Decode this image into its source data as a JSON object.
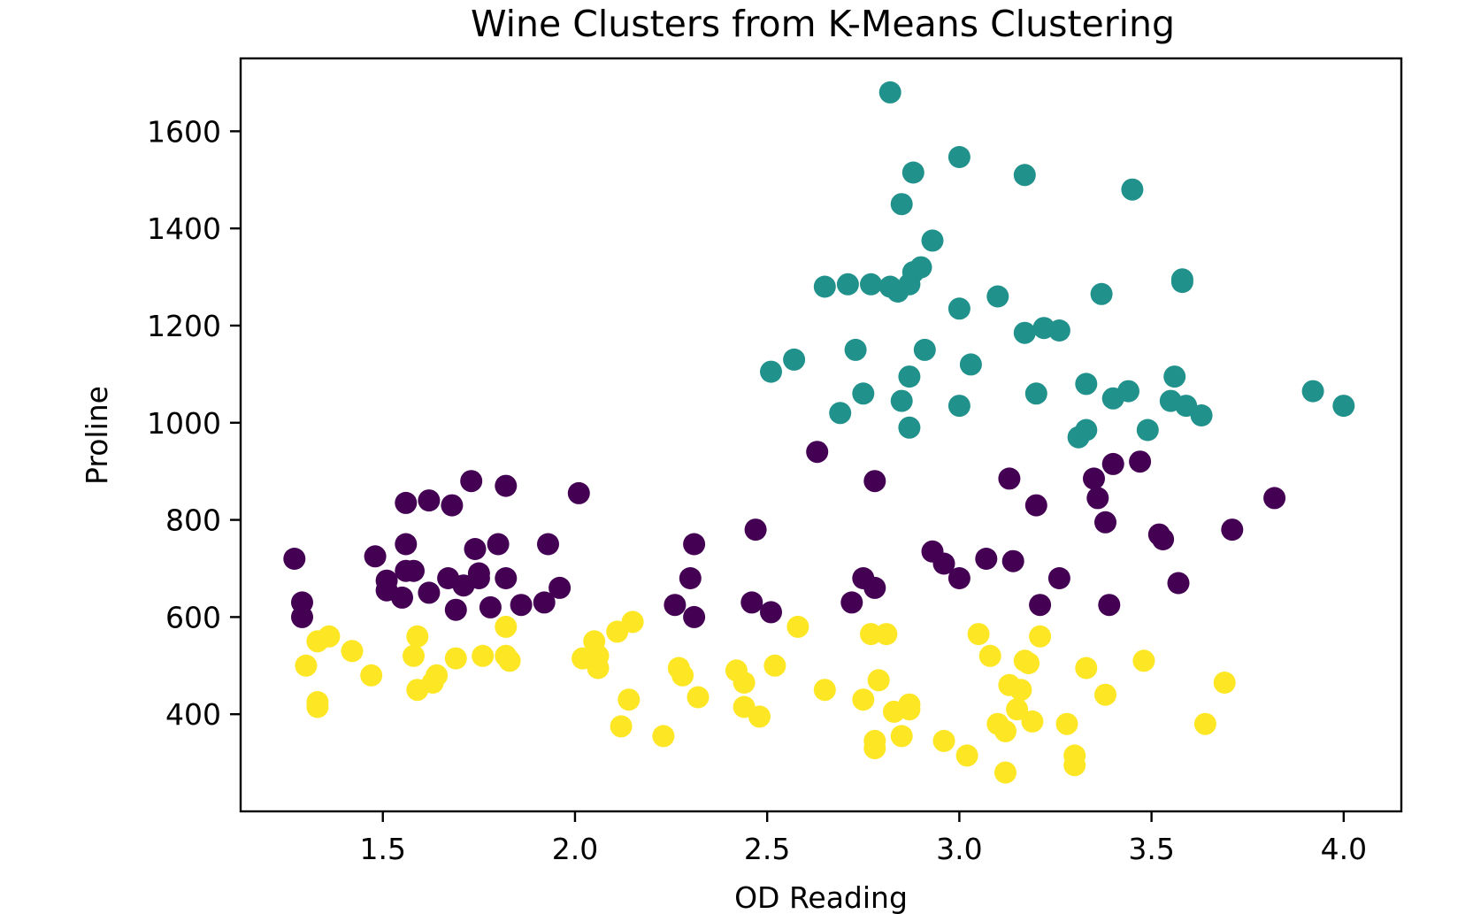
{
  "chart_data": {
    "type": "scatter",
    "title": "Wine Clusters from K-Means Clustering",
    "xlabel": "OD Reading",
    "ylabel": "Proline",
    "xlim": [
      1.13,
      4.15
    ],
    "ylim": [
      200,
      1750
    ],
    "xticks": [
      1.5,
      2.0,
      2.5,
      3.0,
      3.5,
      4.0
    ],
    "xtick_labels": [
      "1.5",
      "2.0",
      "2.5",
      "3.0",
      "3.5",
      "4.0"
    ],
    "yticks": [
      400,
      600,
      800,
      1000,
      1200,
      1400,
      1600
    ],
    "ytick_labels": [
      "400",
      "600",
      "800",
      "1000",
      "1200",
      "1400",
      "1600"
    ],
    "grid": false,
    "series": [
      {
        "color": "#440154",
        "points": [
          [
            1.27,
            720
          ],
          [
            1.29,
            630
          ],
          [
            1.29,
            600
          ],
          [
            1.48,
            725
          ],
          [
            1.51,
            675
          ],
          [
            1.51,
            655
          ],
          [
            1.55,
            640
          ],
          [
            1.56,
            835
          ],
          [
            1.56,
            750
          ],
          [
            1.56,
            695
          ],
          [
            1.58,
            695
          ],
          [
            1.62,
            840
          ],
          [
            1.62,
            650
          ],
          [
            1.67,
            680
          ],
          [
            1.68,
            830
          ],
          [
            1.69,
            615
          ],
          [
            1.71,
            665
          ],
          [
            1.73,
            880
          ],
          [
            1.74,
            740
          ],
          [
            1.75,
            690
          ],
          [
            1.75,
            680
          ],
          [
            1.78,
            620
          ],
          [
            1.8,
            750
          ],
          [
            1.82,
            870
          ],
          [
            1.82,
            680
          ],
          [
            1.86,
            625
          ],
          [
            1.92,
            630
          ],
          [
            1.93,
            750
          ],
          [
            1.96,
            660
          ],
          [
            2.01,
            855
          ],
          [
            2.26,
            625
          ],
          [
            2.3,
            680
          ],
          [
            2.31,
            750
          ],
          [
            2.31,
            600
          ],
          [
            2.46,
            630
          ],
          [
            2.47,
            780
          ],
          [
            2.51,
            610
          ],
          [
            2.63,
            940
          ],
          [
            2.72,
            630
          ],
          [
            2.75,
            680
          ],
          [
            2.78,
            880
          ],
          [
            2.78,
            660
          ],
          [
            2.93,
            735
          ],
          [
            2.96,
            710
          ],
          [
            3.0,
            680
          ],
          [
            3.07,
            720
          ],
          [
            3.13,
            885
          ],
          [
            3.14,
            715
          ],
          [
            3.2,
            830
          ],
          [
            3.21,
            625
          ],
          [
            3.26,
            680
          ],
          [
            3.35,
            885
          ],
          [
            3.36,
            845
          ],
          [
            3.38,
            795
          ],
          [
            3.39,
            625
          ],
          [
            3.4,
            915
          ],
          [
            3.47,
            920
          ],
          [
            3.52,
            770
          ],
          [
            3.53,
            760
          ],
          [
            3.57,
            670
          ],
          [
            3.71,
            780
          ],
          [
            3.82,
            845
          ]
        ]
      },
      {
        "color": "#21918c",
        "points": [
          [
            2.51,
            1105
          ],
          [
            2.57,
            1130
          ],
          [
            2.65,
            1280
          ],
          [
            2.69,
            1020
          ],
          [
            2.71,
            1285
          ],
          [
            2.73,
            1150
          ],
          [
            2.75,
            1060
          ],
          [
            2.77,
            1285
          ],
          [
            2.82,
            1680
          ],
          [
            2.82,
            1280
          ],
          [
            2.84,
            1270
          ],
          [
            2.85,
            1450
          ],
          [
            2.85,
            1045
          ],
          [
            2.87,
            1095
          ],
          [
            2.87,
            990
          ],
          [
            2.87,
            1285
          ],
          [
            2.88,
            1310
          ],
          [
            2.88,
            1515
          ],
          [
            2.9,
            1320
          ],
          [
            2.91,
            1150
          ],
          [
            2.93,
            1375
          ],
          [
            3.0,
            1547
          ],
          [
            3.0,
            1235
          ],
          [
            3.0,
            1035
          ],
          [
            3.03,
            1120
          ],
          [
            3.1,
            1260
          ],
          [
            3.17,
            1510
          ],
          [
            3.17,
            1185
          ],
          [
            3.2,
            1060
          ],
          [
            3.22,
            1195
          ],
          [
            3.26,
            1190
          ],
          [
            3.31,
            970
          ],
          [
            3.33,
            985
          ],
          [
            3.33,
            1080
          ],
          [
            3.37,
            1265
          ],
          [
            3.4,
            1050
          ],
          [
            3.44,
            1065
          ],
          [
            3.45,
            1480
          ],
          [
            3.49,
            985
          ],
          [
            3.55,
            1045
          ],
          [
            3.56,
            1095
          ],
          [
            3.58,
            1290
          ],
          [
            3.58,
            1295
          ],
          [
            3.59,
            1035
          ],
          [
            3.63,
            1015
          ],
          [
            3.92,
            1065
          ],
          [
            4.0,
            1035
          ]
        ]
      },
      {
        "color": "#fde725",
        "points": [
          [
            1.3,
            500
          ],
          [
            1.33,
            550
          ],
          [
            1.33,
            425
          ],
          [
            1.33,
            415
          ],
          [
            1.36,
            560
          ],
          [
            1.42,
            530
          ],
          [
            1.47,
            480
          ],
          [
            1.58,
            520
          ],
          [
            1.59,
            560
          ],
          [
            1.59,
            450
          ],
          [
            1.63,
            465
          ],
          [
            1.64,
            480
          ],
          [
            1.69,
            515
          ],
          [
            1.76,
            520
          ],
          [
            1.82,
            580
          ],
          [
            1.82,
            520
          ],
          [
            1.83,
            510
          ],
          [
            2.02,
            515
          ],
          [
            2.05,
            550
          ],
          [
            2.05,
            515
          ],
          [
            2.06,
            495
          ],
          [
            2.06,
            520
          ],
          [
            2.11,
            570
          ],
          [
            2.12,
            375
          ],
          [
            2.14,
            430
          ],
          [
            2.15,
            590
          ],
          [
            2.23,
            355
          ],
          [
            2.27,
            495
          ],
          [
            2.28,
            480
          ],
          [
            2.32,
            435
          ],
          [
            2.42,
            490
          ],
          [
            2.44,
            465
          ],
          [
            2.44,
            415
          ],
          [
            2.48,
            395
          ],
          [
            2.52,
            500
          ],
          [
            2.58,
            580
          ],
          [
            2.65,
            450
          ],
          [
            2.75,
            430
          ],
          [
            2.77,
            565
          ],
          [
            2.78,
            345
          ],
          [
            2.78,
            330
          ],
          [
            2.79,
            470
          ],
          [
            2.81,
            565
          ],
          [
            2.83,
            405
          ],
          [
            2.85,
            355
          ],
          [
            2.87,
            420
          ],
          [
            2.87,
            410
          ],
          [
            2.96,
            345
          ],
          [
            3.02,
            315
          ],
          [
            3.05,
            565
          ],
          [
            3.08,
            520
          ],
          [
            3.1,
            380
          ],
          [
            3.12,
            280
          ],
          [
            3.12,
            365
          ],
          [
            3.13,
            460
          ],
          [
            3.15,
            410
          ],
          [
            3.16,
            450
          ],
          [
            3.17,
            510
          ],
          [
            3.18,
            505
          ],
          [
            3.19,
            385
          ],
          [
            3.21,
            560
          ],
          [
            3.28,
            380
          ],
          [
            3.3,
            315
          ],
          [
            3.3,
            295
          ],
          [
            3.33,
            495
          ],
          [
            3.38,
            440
          ],
          [
            3.48,
            510
          ],
          [
            3.64,
            380
          ],
          [
            3.69,
            465
          ]
        ]
      }
    ]
  }
}
